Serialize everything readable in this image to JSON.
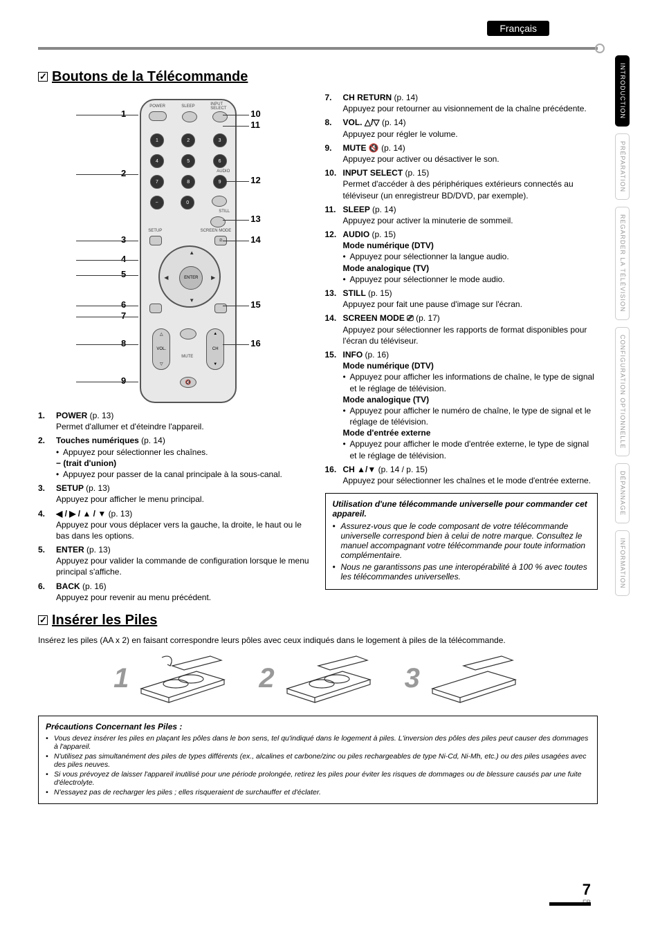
{
  "language_badge": "Français",
  "side_tabs": [
    {
      "label": "INTRODUCTION",
      "active": true
    },
    {
      "label": "PRÉPARATION",
      "active": false
    },
    {
      "label": "REGARDER LA TÉLÉVISION",
      "active": false
    },
    {
      "label": "CONFIGURATION OPTIONNELLE",
      "active": false
    },
    {
      "label": "DÉPANNAGE",
      "active": false
    },
    {
      "label": "INFORMATION",
      "active": false
    }
  ],
  "sections": {
    "remote_title": "Boutons de la Télécommande",
    "insert_title": "Insérer les Piles"
  },
  "remote": {
    "labels": {
      "power": "POWER",
      "sleep": "SLEEP",
      "input": "INPUT SELECT",
      "audio": "AUDIO",
      "still": "STILL",
      "setup": "SETUP",
      "screen": "SCREEN MODE",
      "back": "BACK",
      "info": "INFO",
      "enter": "ENTER",
      "vol": "VOL.",
      "ch": "CH",
      "mute": "MUTE"
    },
    "callouts_left": [
      "1",
      "2",
      "3",
      "4",
      "5",
      "6",
      "7",
      "8",
      "9"
    ],
    "callouts_right": [
      "10",
      "11",
      "12",
      "13",
      "14",
      "15",
      "16"
    ]
  },
  "descriptions_left": [
    {
      "num": "1.",
      "title": "POWER",
      "pg": "(p. 13)",
      "body": "Permet d'allumer et d'éteindre l'appareil."
    },
    {
      "num": "2.",
      "title": "Touches numériques",
      "pg": "(p. 14)",
      "lines": [
        {
          "type": "bullet",
          "text": "Appuyez pour sélectionner les chaînes."
        },
        {
          "type": "subhead",
          "text": "− (trait d'union)"
        },
        {
          "type": "bullet",
          "text": "Appuyez pour passer de la canal principale à la sous-canal."
        }
      ]
    },
    {
      "num": "3.",
      "title": "SETUP",
      "pg": "(p. 13)",
      "body": "Appuyez pour afficher le menu principal."
    },
    {
      "num": "4.",
      "title": "◀ / ▶ / ▲ / ▼",
      "pg": "(p. 13)",
      "body": "Appuyez pour vous déplacer vers la gauche, la droite, le haut ou le bas dans les options."
    },
    {
      "num": "5.",
      "title": "ENTER",
      "pg": "(p. 13)",
      "body": "Appuyez pour valider la commande de configuration lorsque le menu principal s'affiche."
    },
    {
      "num": "6.",
      "title": "BACK",
      "pg": "(p. 16)",
      "body": "Appuyez pour revenir au menu précédent."
    }
  ],
  "descriptions_right": [
    {
      "num": "7.",
      "title": "CH RETURN",
      "pg": "(p. 14)",
      "body": "Appuyez pour retourner au visionnement de la chaîne précédente."
    },
    {
      "num": "8.",
      "title": "VOL. △/▽",
      "pg": "(p. 14)",
      "body": "Appuyez pour régler le volume."
    },
    {
      "num": "9.",
      "title": "MUTE 🔇",
      "pg": "(p. 14)",
      "body": "Appuyez pour activer ou désactiver le son."
    },
    {
      "num": "10.",
      "title": "INPUT SELECT",
      "pg": "(p. 15)",
      "body": "Permet d'accéder à des périphériques extérieurs connectés au téléviseur (un enregistreur BD/DVD, par exemple)."
    },
    {
      "num": "11.",
      "title": "SLEEP",
      "pg": "(p. 14)",
      "body": "Appuyez pour activer la minuterie de sommeil."
    },
    {
      "num": "12.",
      "title": "AUDIO",
      "pg": "(p. 15)",
      "lines": [
        {
          "type": "subhead",
          "text": "Mode numérique (DTV)"
        },
        {
          "type": "bullet",
          "text": "Appuyez pour sélectionner la langue audio."
        },
        {
          "type": "subhead",
          "text": "Mode analogique (TV)"
        },
        {
          "type": "bullet",
          "text": "Appuyez pour sélectionner le mode audio."
        }
      ]
    },
    {
      "num": "13.",
      "title": "STILL",
      "pg": "(p. 15)",
      "body": "Appuyez pour fait une pause d'image sur l'écran."
    },
    {
      "num": "14.",
      "title": "SCREEN MODE ⎚",
      "pg": "(p. 17)",
      "body": "Appuyez pour sélectionner les rapports de format disponibles pour l'écran du téléviseur."
    },
    {
      "num": "15.",
      "title": "INFO",
      "pg": "(p. 16)",
      "lines": [
        {
          "type": "subhead",
          "text": "Mode numérique (DTV)"
        },
        {
          "type": "bullet",
          "text": "Appuyez pour afficher les informations de chaîne, le type de signal et le réglage de télévision."
        },
        {
          "type": "subhead",
          "text": "Mode analogique (TV)"
        },
        {
          "type": "bullet",
          "text": "Appuyez pour afficher le numéro de chaîne, le type de signal et le réglage de télévision."
        },
        {
          "type": "subhead",
          "text": "Mode d'entrée externe"
        },
        {
          "type": "bullet",
          "text": "Appuyez pour afficher le mode d'entrée externe, le type de signal et le réglage de télévision."
        }
      ]
    },
    {
      "num": "16.",
      "title": "CH ▲/▼",
      "pg": "(p. 14 / p. 15)",
      "body": "Appuyez pour sélectionner les chaînes et le mode d'entrée externe."
    }
  ],
  "universal_box": {
    "title": "Utilisation d'une télécommande universelle pour commander cet appareil.",
    "items": [
      "Assurez-vous que le code composant de votre télécommande universelle correspond bien à celui de notre marque.\nConsultez le manuel accompagnant votre télécommande pour toute information complémentaire.",
      "Nous ne garantissons pas une interopérabilité à 100 % avec toutes les télécommandes universelles."
    ]
  },
  "insert_text": "Insérez les piles (AA x 2) en faisant correspondre leurs pôles avec ceux indiqués dans le logement à piles de la télécommande.",
  "battery_steps": [
    "1",
    "2",
    "3"
  ],
  "precautions": {
    "title": "Précautions Concernant les Piles :",
    "items": [
      "Vous devez insérer les piles en plaçant les pôles dans le bon sens, tel qu'indiqué dans le logement à piles. L'inversion des pôles des piles peut causer des dommages à l'appareil.",
      "N'utilisez pas simultanément des piles de types différents (ex., alcalines et carbone/zinc ou piles rechargeables de type Ni-Cd, Ni-Mh, etc.) ou des piles usagées avec des piles neuves.",
      "Si vous prévoyez de laisser l'appareil inutilisé pour une période prolongée, retirez les piles pour éviter les risques de dommages ou de blessure causés par une fuite d'électrolyte.",
      "N'essayez pas de recharger les piles ; elles risqueraient de surchauffer et d'éclater."
    ]
  },
  "page_number": "7",
  "page_lang": "FR",
  "colors": {
    "rule": "#888888",
    "sidetab_inactive_text": "#999999",
    "bignum": "#999999"
  }
}
